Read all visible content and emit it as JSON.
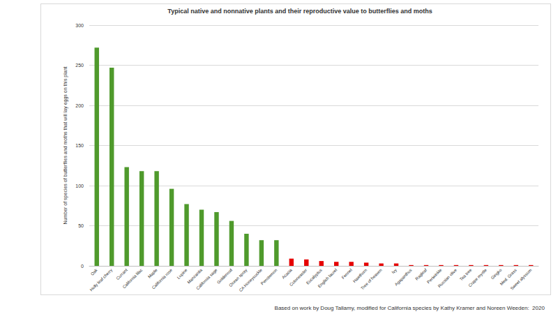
{
  "chart_data": {
    "type": "bar",
    "title": "Typical native and nonnative plants and their reproductive value to butterflies and moths",
    "y_label": "Number of species of butterflies and moths that will lay eggs on this plant",
    "annotation": "Based on work by Doug Tallamy, modified for California species by Kathy Kramer and Noreen Weeden:  2020",
    "categories": [
      "Oak",
      "Holly leaf cherry",
      "Currant",
      "California lilac",
      "Maple",
      "California rose",
      "Lupine",
      "Manzanita",
      "California sage",
      "Goldenrod",
      "Ocean spray",
      "CA Honeysuckle",
      "Penstemon",
      "Acacia",
      "Cotoneaster",
      "Eucalyptus",
      "English laurel",
      "Fennel",
      "Hawthorn",
      "Tree of heaven",
      "Ivy",
      "Agapanthus",
      "Ragleaf",
      "Periwinkle",
      "Russian olive",
      "Tea tree",
      "Crape myrtle",
      "Gingko",
      "Med. Grass",
      "Sweet alyssum"
    ],
    "values": [
      272,
      247,
      123,
      118,
      118,
      96,
      77,
      70,
      67,
      56,
      40,
      32,
      32,
      9,
      8,
      6,
      5,
      5,
      4,
      3,
      3,
      1,
      1,
      1,
      1,
      1,
      1,
      1,
      1,
      1
    ],
    "colors": [
      "#4f9a2c",
      "#4f9a2c",
      "#4f9a2c",
      "#4f9a2c",
      "#4f9a2c",
      "#4f9a2c",
      "#4f9a2c",
      "#4f9a2c",
      "#4f9a2c",
      "#4f9a2c",
      "#4f9a2c",
      "#4f9a2c",
      "#4f9a2c",
      "#e60000",
      "#e60000",
      "#e60000",
      "#e60000",
      "#e60000",
      "#e60000",
      "#e60000",
      "#e60000",
      "#e60000",
      "#e60000",
      "#e60000",
      "#e60000",
      "#e60000",
      "#e60000",
      "#e60000",
      "#e60000",
      "#e60000"
    ],
    "ylim": [
      0,
      300
    ],
    "yticks": [
      0,
      50,
      100,
      150,
      200,
      250,
      300
    ],
    "grid": true
  }
}
